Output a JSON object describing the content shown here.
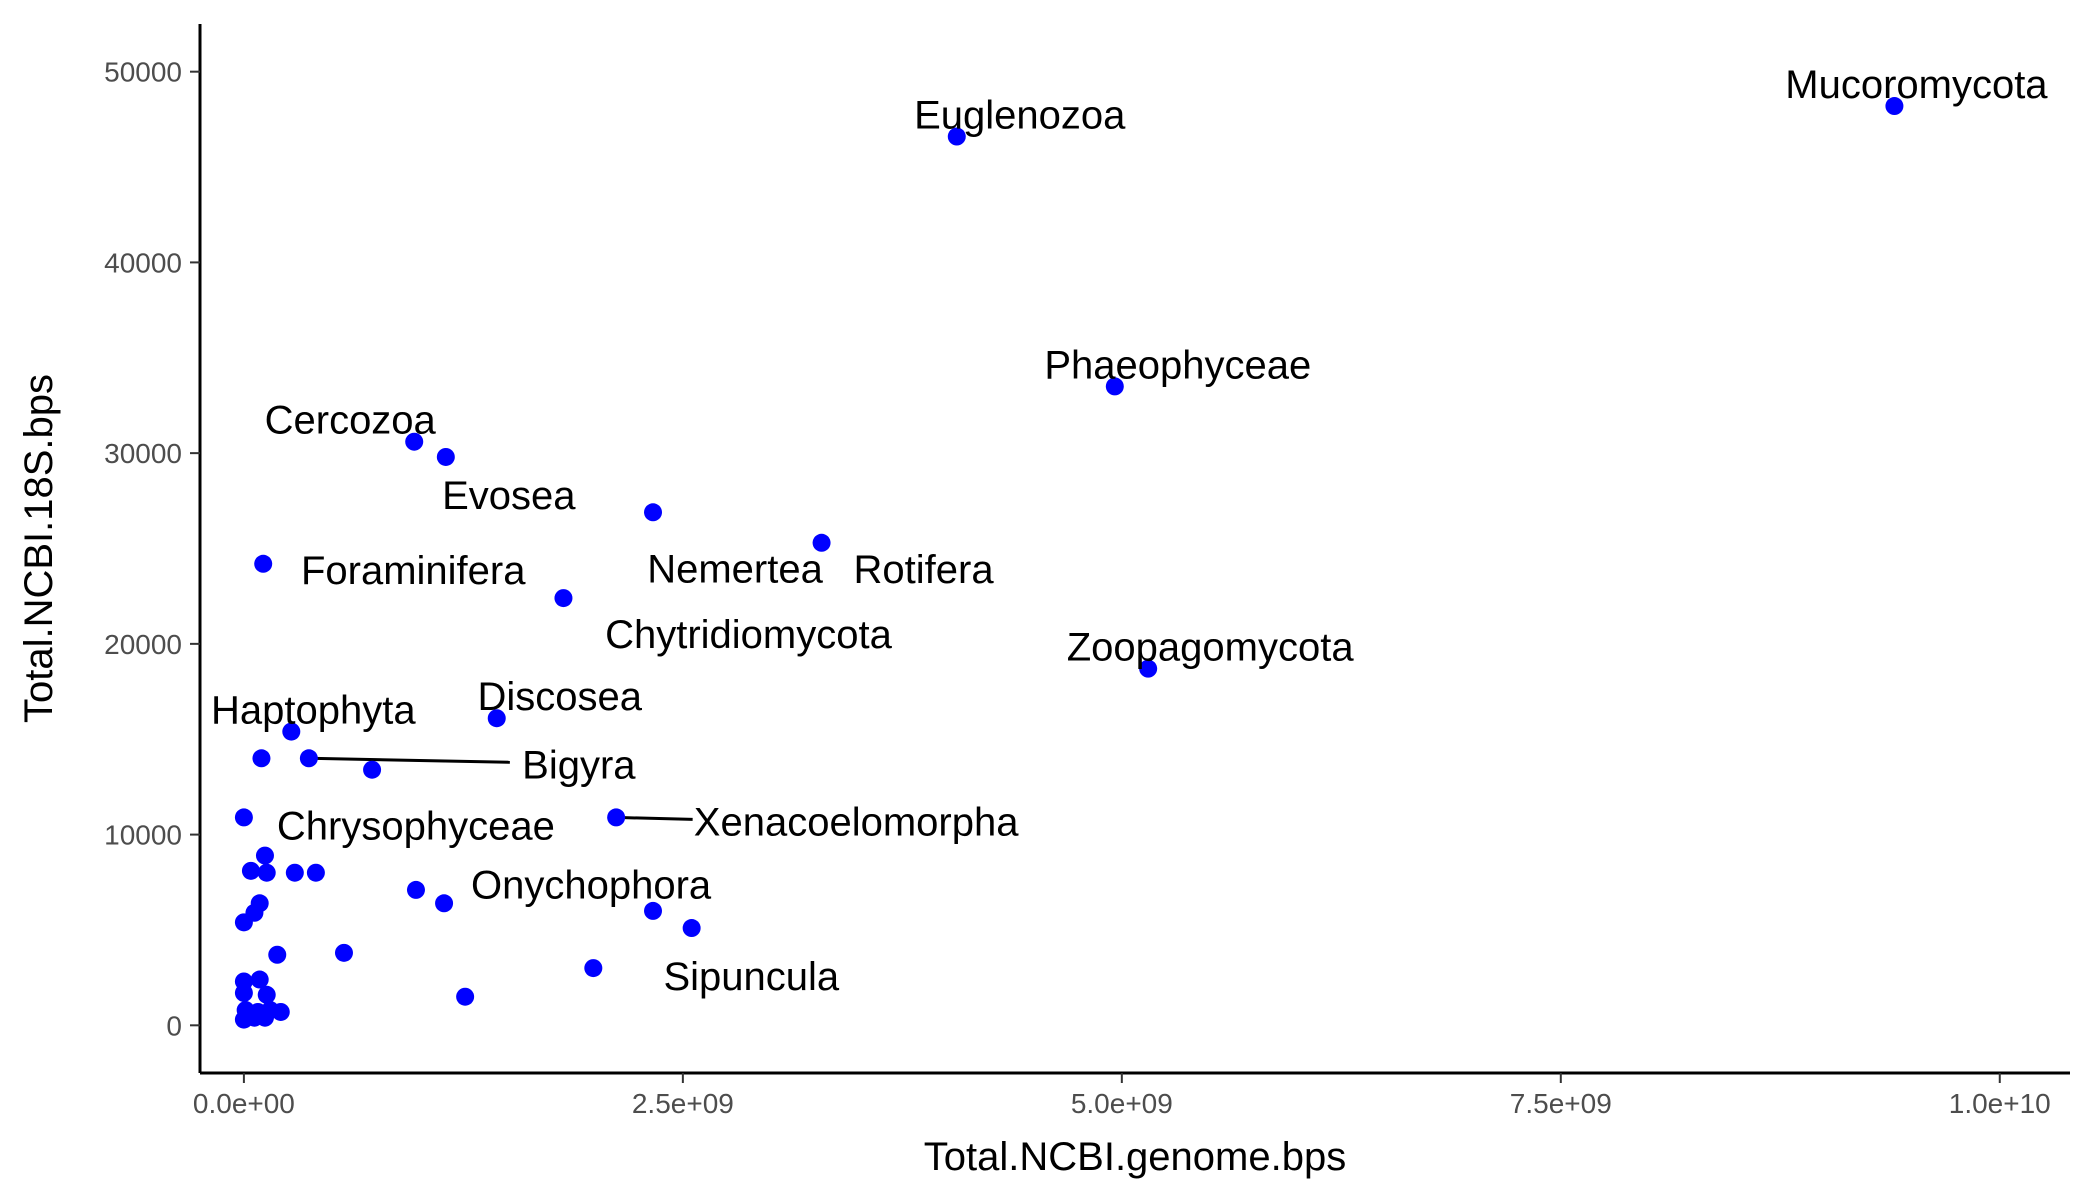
{
  "chart_data": {
    "type": "scatter",
    "xlabel": "Total.NCBI.genome.bps",
    "ylabel": "Total.NCBI.18S.bps",
    "xlim": [
      -250000000,
      10400000000
    ],
    "ylim": [
      -2500,
      52500
    ],
    "x_ticks": [
      {
        "value": 0,
        "label": "0.0e+00"
      },
      {
        "value": 2500000000,
        "label": "2.5e+09"
      },
      {
        "value": 5000000000,
        "label": "5.0e+09"
      },
      {
        "value": 7500000000,
        "label": "7.5e+09"
      },
      {
        "value": 10000000000,
        "label": "1.0e+10"
      }
    ],
    "y_ticks": [
      {
        "value": 0,
        "label": "0"
      },
      {
        "value": 10000,
        "label": "10000"
      },
      {
        "value": 20000,
        "label": "20000"
      },
      {
        "value": 30000,
        "label": "30000"
      },
      {
        "value": 40000,
        "label": "40000"
      },
      {
        "value": 50000,
        "label": "50000"
      }
    ],
    "grid": false,
    "point_color": "#0000ff",
    "points": [
      {
        "x": 9400000000,
        "y": 48200,
        "label": "Mucoromycota"
      },
      {
        "x": 4060000000,
        "y": 46600,
        "label": "Euglenozoa"
      },
      {
        "x": 4960000000,
        "y": 33500,
        "label": "Phaeophyceae"
      },
      {
        "x": 970000000,
        "y": 30600,
        "label": "Cercozoa"
      },
      {
        "x": 1150000000,
        "y": 29800,
        "label": "Evosea"
      },
      {
        "x": 2330000000,
        "y": 26900,
        "label": "Nemertea"
      },
      {
        "x": 3290000000,
        "y": 25300,
        "label": "Rotifera"
      },
      {
        "x": 110000000,
        "y": 24200,
        "label": "Foraminifera"
      },
      {
        "x": 1820000000,
        "y": 22400,
        "label": "Chytridiomycota"
      },
      {
        "x": 5150000000,
        "y": 18700,
        "label": "Zoopagomycota"
      },
      {
        "x": 1440000000,
        "y": 16100,
        "label": "Discosea"
      },
      {
        "x": 270000000,
        "y": 15400,
        "label": "Haptophyta"
      },
      {
        "x": 370000000,
        "y": 14000,
        "label": "Bigyra"
      },
      {
        "x": 2120000000,
        "y": 10900,
        "label": "Xenacoelomorpha"
      },
      {
        "x": 0,
        "y": 10900,
        "label": "Chrysophyceae"
      },
      {
        "x": 1140000000,
        "y": 6400,
        "label": "Onychophora"
      },
      {
        "x": 1990000000,
        "y": 3000,
        "label": "Sipuncula"
      },
      {
        "x": 100000000,
        "y": 14000
      },
      {
        "x": 730000000,
        "y": 13400
      },
      {
        "x": 120000000,
        "y": 8900
      },
      {
        "x": 40000000,
        "y": 8100
      },
      {
        "x": 130000000,
        "y": 8000
      },
      {
        "x": 290000000,
        "y": 8000
      },
      {
        "x": 410000000,
        "y": 8000
      },
      {
        "x": 980000000,
        "y": 7100
      },
      {
        "x": 90000000,
        "y": 6400
      },
      {
        "x": 60000000,
        "y": 5900
      },
      {
        "x": 0,
        "y": 5400
      },
      {
        "x": 2330000000,
        "y": 6000
      },
      {
        "x": 2550000000,
        "y": 5100
      },
      {
        "x": 570000000,
        "y": 3800
      },
      {
        "x": 190000000,
        "y": 3700
      },
      {
        "x": 0,
        "y": 2300
      },
      {
        "x": 90000000,
        "y": 2400
      },
      {
        "x": 0,
        "y": 1700
      },
      {
        "x": 130000000,
        "y": 1600
      },
      {
        "x": 1260000000,
        "y": 1500
      },
      {
        "x": 10000000,
        "y": 800
      },
      {
        "x": 80000000,
        "y": 700
      },
      {
        "x": 150000000,
        "y": 800
      },
      {
        "x": 210000000,
        "y": 700
      },
      {
        "x": 0,
        "y": 300
      },
      {
        "x": 60000000,
        "y": 400
      },
      {
        "x": 120000000,
        "y": 400
      }
    ]
  }
}
